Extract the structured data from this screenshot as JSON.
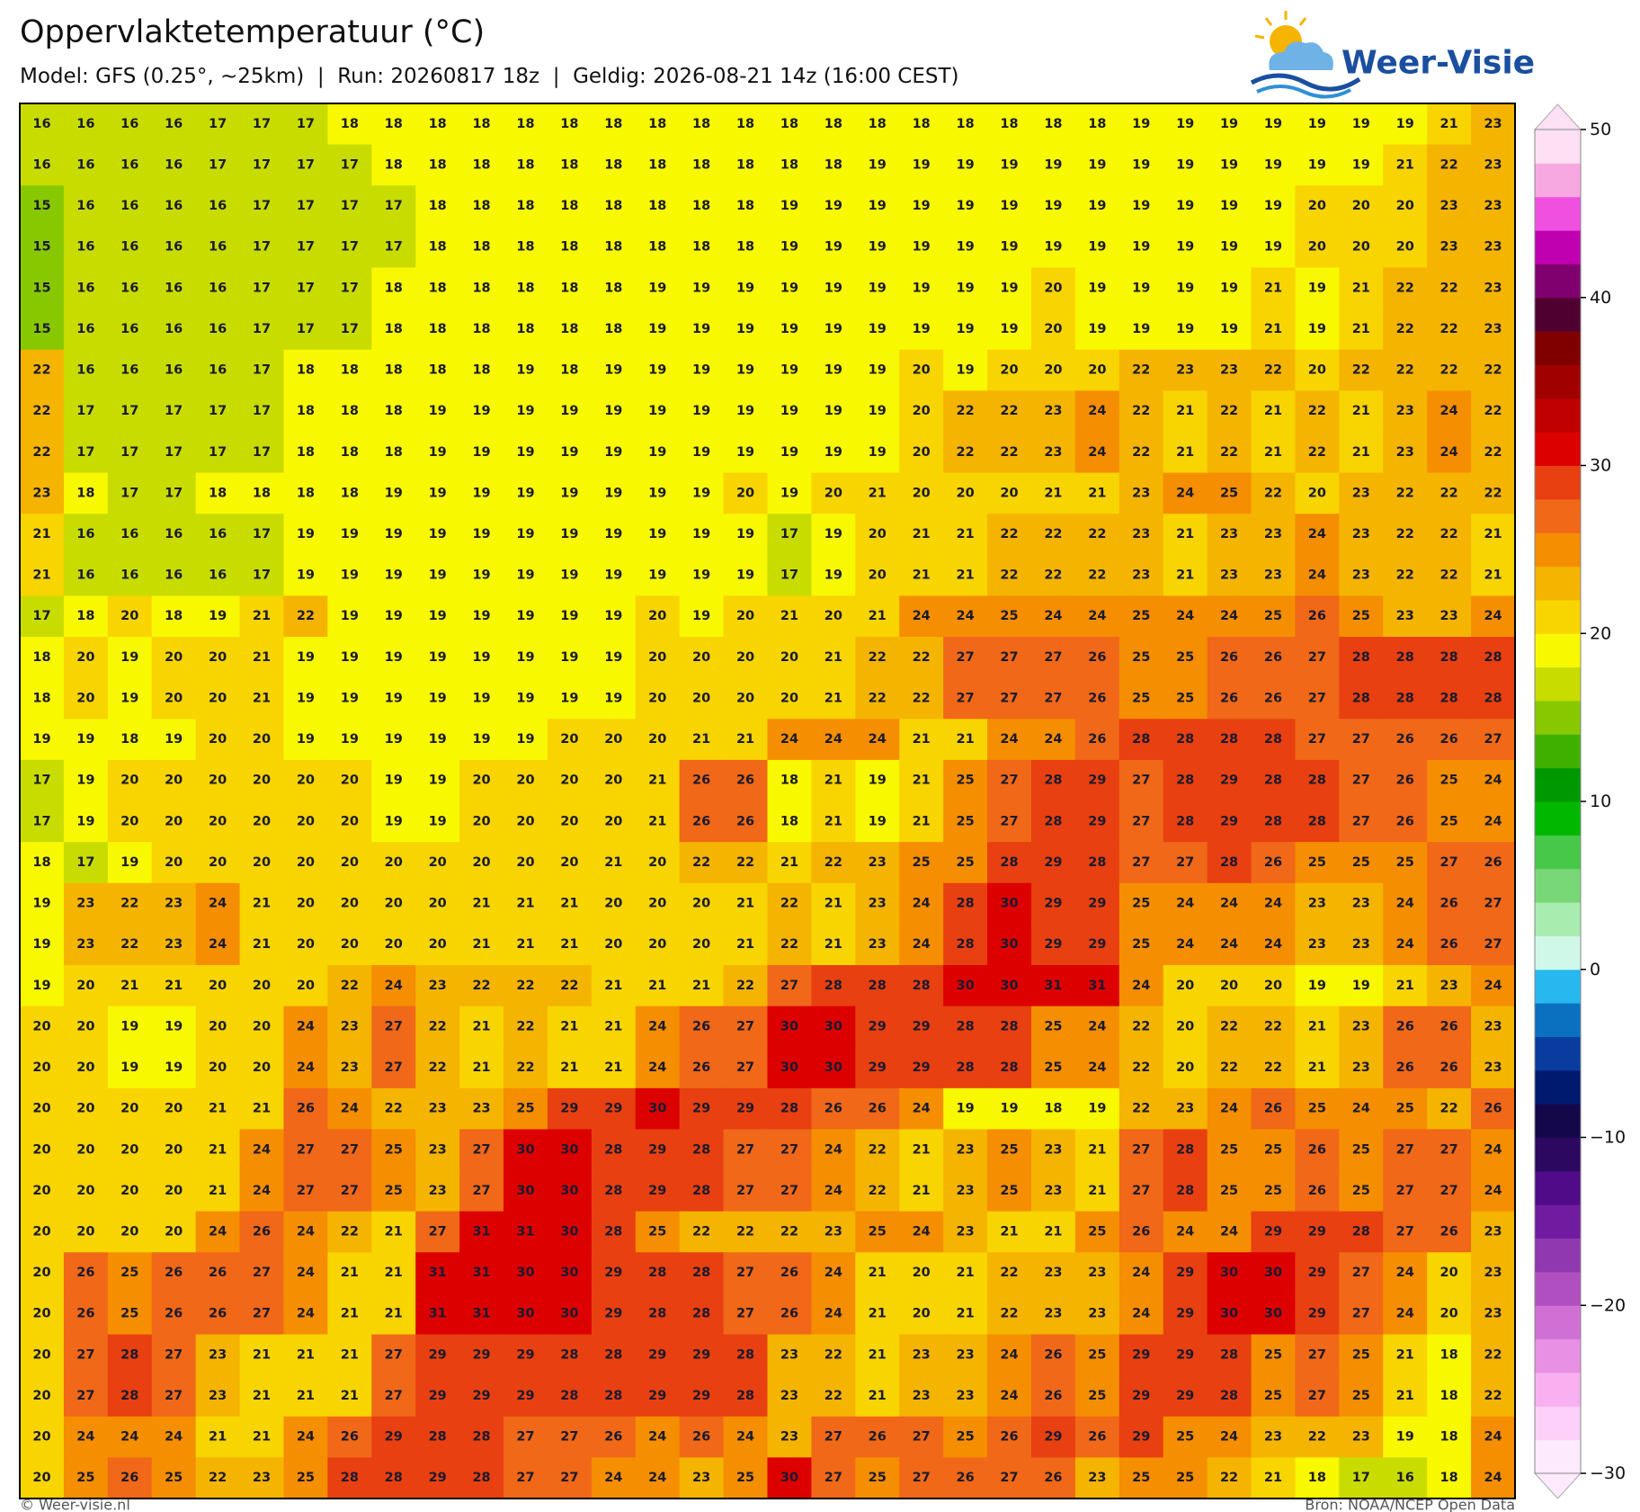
{
  "header": {
    "logo": "Weer-Visie"
  },
  "footer": {
    "left": "© Weer-visie.nl",
    "right": "Bron: NOAA/NCEP Open Data"
  },
  "chart_data": {
    "type": "heatmap",
    "title": "Oppervlaktetemperatuur (°C)",
    "subtitle": "Model: GFS (0.25°, ~25km)  |  Run: 20260817 18z  |  Geldig: 2026-08-21 14z (16:00 CEST)",
    "grid": [
      [
        16,
        16,
        16,
        16,
        17,
        17,
        17,
        18,
        18,
        18,
        18,
        18,
        18,
        18,
        18,
        18,
        18,
        18,
        18,
        18,
        18,
        18,
        18,
        18,
        18,
        19,
        19,
        19,
        19,
        19,
        19,
        19,
        21,
        23
      ],
      [
        16,
        16,
        16,
        16,
        17,
        17,
        17,
        17,
        18,
        18,
        18,
        18,
        18,
        18,
        18,
        18,
        18,
        18,
        18,
        19,
        19,
        19,
        19,
        19,
        19,
        19,
        19,
        19,
        19,
        19,
        19,
        21,
        22,
        23
      ],
      [
        15,
        16,
        16,
        16,
        16,
        17,
        17,
        17,
        17,
        18,
        18,
        18,
        18,
        18,
        18,
        18,
        18,
        19,
        19,
        19,
        19,
        19,
        19,
        19,
        19,
        19,
        19,
        19,
        19,
        20,
        20,
        20,
        23,
        23
      ],
      [
        15,
        16,
        16,
        16,
        16,
        17,
        17,
        17,
        17,
        18,
        18,
        18,
        18,
        18,
        18,
        18,
        18,
        19,
        19,
        19,
        19,
        19,
        19,
        19,
        19,
        19,
        19,
        19,
        19,
        20,
        20,
        20,
        23,
        23
      ],
      [
        15,
        16,
        16,
        16,
        16,
        17,
        17,
        17,
        18,
        18,
        18,
        18,
        18,
        18,
        19,
        19,
        19,
        19,
        19,
        19,
        19,
        19,
        19,
        20,
        19,
        19,
        19,
        19,
        21,
        19,
        21,
        22,
        22,
        23
      ],
      [
        15,
        16,
        16,
        16,
        16,
        17,
        17,
        17,
        18,
        18,
        18,
        18,
        18,
        18,
        19,
        19,
        19,
        19,
        19,
        19,
        19,
        19,
        19,
        20,
        19,
        19,
        19,
        19,
        21,
        19,
        21,
        22,
        22,
        23
      ],
      [
        22,
        16,
        16,
        16,
        16,
        17,
        18,
        18,
        18,
        18,
        18,
        19,
        18,
        19,
        19,
        19,
        19,
        19,
        19,
        19,
        20,
        19,
        20,
        20,
        20,
        22,
        23,
        23,
        22,
        20,
        22,
        22,
        22,
        22
      ],
      [
        22,
        17,
        17,
        17,
        17,
        17,
        18,
        18,
        18,
        19,
        19,
        19,
        19,
        19,
        19,
        19,
        19,
        19,
        19,
        19,
        20,
        22,
        22,
        23,
        24,
        22,
        21,
        22,
        21,
        22,
        21,
        23,
        24,
        22
      ],
      [
        22,
        17,
        17,
        17,
        17,
        17,
        18,
        18,
        18,
        19,
        19,
        19,
        19,
        19,
        19,
        19,
        19,
        19,
        19,
        19,
        20,
        22,
        22,
        23,
        24,
        22,
        21,
        22,
        21,
        22,
        21,
        23,
        24,
        22
      ],
      [
        23,
        18,
        17,
        17,
        18,
        18,
        18,
        18,
        19,
        19,
        19,
        19,
        19,
        19,
        19,
        19,
        20,
        19,
        20,
        21,
        20,
        20,
        20,
        21,
        21,
        23,
        24,
        25,
        22,
        20,
        23,
        22,
        22,
        22
      ],
      [
        21,
        16,
        16,
        16,
        16,
        17,
        19,
        19,
        19,
        19,
        19,
        19,
        19,
        19,
        19,
        19,
        19,
        17,
        19,
        20,
        21,
        21,
        22,
        22,
        22,
        23,
        21,
        23,
        23,
        24,
        23,
        22,
        22,
        21
      ],
      [
        21,
        16,
        16,
        16,
        16,
        17,
        19,
        19,
        19,
        19,
        19,
        19,
        19,
        19,
        19,
        19,
        19,
        17,
        19,
        20,
        21,
        21,
        22,
        22,
        22,
        23,
        21,
        23,
        23,
        24,
        23,
        22,
        22,
        21
      ],
      [
        17,
        18,
        20,
        18,
        19,
        21,
        22,
        19,
        19,
        19,
        19,
        19,
        19,
        19,
        20,
        19,
        20,
        21,
        20,
        21,
        24,
        24,
        25,
        24,
        24,
        25,
        24,
        24,
        25,
        26,
        25,
        23,
        23,
        24
      ],
      [
        18,
        20,
        19,
        20,
        20,
        21,
        19,
        19,
        19,
        19,
        19,
        19,
        19,
        19,
        20,
        20,
        20,
        20,
        21,
        22,
        22,
        27,
        27,
        27,
        26,
        25,
        25,
        26,
        26,
        27,
        28,
        28,
        28,
        28
      ],
      [
        18,
        20,
        19,
        20,
        20,
        21,
        19,
        19,
        19,
        19,
        19,
        19,
        19,
        19,
        20,
        20,
        20,
        20,
        21,
        22,
        22,
        27,
        27,
        27,
        26,
        25,
        25,
        26,
        26,
        27,
        28,
        28,
        28,
        28
      ],
      [
        19,
        19,
        18,
        19,
        20,
        20,
        19,
        19,
        19,
        19,
        19,
        19,
        20,
        20,
        20,
        21,
        21,
        24,
        24,
        24,
        21,
        21,
        24,
        24,
        26,
        28,
        28,
        28,
        28,
        27,
        27,
        26,
        26,
        27
      ],
      [
        17,
        19,
        20,
        20,
        20,
        20,
        20,
        20,
        19,
        19,
        20,
        20,
        20,
        20,
        21,
        26,
        26,
        18,
        21,
        19,
        21,
        25,
        27,
        28,
        29,
        27,
        28,
        29,
        28,
        28,
        27,
        26,
        25,
        24
      ],
      [
        17,
        19,
        20,
        20,
        20,
        20,
        20,
        20,
        19,
        19,
        20,
        20,
        20,
        20,
        21,
        26,
        26,
        18,
        21,
        19,
        21,
        25,
        27,
        28,
        29,
        27,
        28,
        29,
        28,
        28,
        27,
        26,
        25,
        24
      ],
      [
        18,
        17,
        19,
        20,
        20,
        20,
        20,
        20,
        20,
        20,
        20,
        20,
        20,
        21,
        20,
        22,
        22,
        21,
        22,
        23,
        25,
        25,
        28,
        29,
        28,
        27,
        27,
        28,
        26,
        25,
        25,
        25,
        27,
        26
      ],
      [
        19,
        23,
        22,
        23,
        24,
        21,
        20,
        20,
        20,
        20,
        21,
        21,
        21,
        20,
        20,
        20,
        21,
        22,
        21,
        23,
        24,
        28,
        30,
        29,
        29,
        25,
        24,
        24,
        24,
        23,
        23,
        24,
        26,
        27
      ],
      [
        19,
        23,
        22,
        23,
        24,
        21,
        20,
        20,
        20,
        20,
        21,
        21,
        21,
        20,
        20,
        20,
        21,
        22,
        21,
        23,
        24,
        28,
        30,
        29,
        29,
        25,
        24,
        24,
        24,
        23,
        23,
        24,
        26,
        27
      ],
      [
        19,
        20,
        21,
        21,
        20,
        20,
        20,
        22,
        24,
        23,
        22,
        22,
        22,
        21,
        21,
        21,
        22,
        27,
        28,
        28,
        28,
        30,
        30,
        31,
        31,
        24,
        20,
        20,
        20,
        19,
        19,
        21,
        23,
        24
      ],
      [
        20,
        20,
        19,
        19,
        20,
        20,
        24,
        23,
        27,
        22,
        21,
        22,
        21,
        21,
        24,
        26,
        27,
        30,
        30,
        29,
        29,
        28,
        28,
        25,
        24,
        22,
        20,
        22,
        22,
        21,
        23,
        26,
        26,
        23
      ],
      [
        20,
        20,
        19,
        19,
        20,
        20,
        24,
        23,
        27,
        22,
        21,
        22,
        21,
        21,
        24,
        26,
        27,
        30,
        30,
        29,
        29,
        28,
        28,
        25,
        24,
        22,
        20,
        22,
        22,
        21,
        23,
        26,
        26,
        23
      ],
      [
        20,
        20,
        20,
        20,
        21,
        21,
        26,
        24,
        22,
        23,
        23,
        25,
        29,
        29,
        30,
        29,
        29,
        28,
        26,
        26,
        24,
        19,
        19,
        18,
        19,
        22,
        23,
        24,
        26,
        25,
        24,
        25,
        22,
        26
      ],
      [
        20,
        20,
        20,
        20,
        21,
        24,
        27,
        27,
        25,
        23,
        27,
        30,
        30,
        28,
        29,
        28,
        27,
        27,
        24,
        22,
        21,
        23,
        25,
        23,
        21,
        27,
        28,
        25,
        25,
        26,
        25,
        27,
        27,
        24
      ],
      [
        20,
        20,
        20,
        20,
        21,
        24,
        27,
        27,
        25,
        23,
        27,
        30,
        30,
        28,
        29,
        28,
        27,
        27,
        24,
        22,
        21,
        23,
        25,
        23,
        21,
        27,
        28,
        25,
        25,
        26,
        25,
        27,
        27,
        24
      ],
      [
        20,
        20,
        20,
        20,
        24,
        26,
        24,
        22,
        21,
        27,
        31,
        31,
        30,
        28,
        25,
        22,
        22,
        22,
        23,
        25,
        24,
        23,
        21,
        21,
        25,
        26,
        24,
        24,
        29,
        29,
        28,
        27,
        26,
        23
      ],
      [
        20,
        26,
        25,
        26,
        26,
        27,
        24,
        21,
        21,
        31,
        31,
        30,
        30,
        29,
        28,
        28,
        27,
        26,
        24,
        21,
        20,
        21,
        22,
        23,
        23,
        24,
        29,
        30,
        30,
        29,
        27,
        24,
        20,
        23
      ],
      [
        20,
        26,
        25,
        26,
        26,
        27,
        24,
        21,
        21,
        31,
        31,
        30,
        30,
        29,
        28,
        28,
        27,
        26,
        24,
        21,
        20,
        21,
        22,
        23,
        23,
        24,
        29,
        30,
        30,
        29,
        27,
        24,
        20,
        23
      ],
      [
        20,
        27,
        28,
        27,
        23,
        21,
        21,
        21,
        27,
        29,
        29,
        29,
        28,
        28,
        29,
        29,
        28,
        23,
        22,
        21,
        23,
        23,
        24,
        26,
        25,
        29,
        29,
        28,
        25,
        27,
        25,
        21,
        18,
        22
      ],
      [
        20,
        27,
        28,
        27,
        23,
        21,
        21,
        21,
        27,
        29,
        29,
        29,
        28,
        28,
        29,
        29,
        28,
        23,
        22,
        21,
        23,
        23,
        24,
        26,
        25,
        29,
        29,
        28,
        25,
        27,
        25,
        21,
        18,
        22
      ],
      [
        20,
        24,
        24,
        24,
        21,
        21,
        24,
        26,
        29,
        28,
        28,
        27,
        27,
        26,
        24,
        26,
        24,
        23,
        27,
        26,
        27,
        25,
        26,
        29,
        26,
        29,
        25,
        24,
        23,
        22,
        23,
        19,
        18,
        24
      ],
      [
        20,
        25,
        26,
        25,
        22,
        23,
        25,
        28,
        28,
        29,
        28,
        27,
        27,
        24,
        24,
        23,
        25,
        30,
        27,
        25,
        27,
        26,
        27,
        26,
        23,
        25,
        25,
        22,
        21,
        18,
        17,
        16,
        18,
        24
      ]
    ],
    "colorbar": {
      "lim": [
        -30,
        50
      ],
      "ticks": [
        {
          "value": -30,
          "label": "−30"
        },
        {
          "value": -20,
          "label": "−20"
        },
        {
          "value": -10,
          "label": "−10"
        },
        0,
        10,
        20,
        30,
        40,
        50
      ],
      "colors": [
        "#fdeafd",
        "#fcd0f8",
        "#f8b0f0",
        "#e890e4",
        "#d070d4",
        "#b050c0",
        "#9038b0",
        "#701ca0",
        "#500c88",
        "#2c0860",
        "#14084a",
        "#001a70",
        "#0a3ca0",
        "#0a70c0",
        "#28b8f0",
        "#d0f8e8",
        "#a8ecb0",
        "#78d878",
        "#48c848",
        "#00b800",
        "#009800",
        "#40b000",
        "#88c800",
        "#c8dc00",
        "#f8f800",
        "#f8d400",
        "#f5b400",
        "#f58e00",
        "#f06818",
        "#e84010",
        "#dc0000",
        "#c00000",
        "#a00000",
        "#800000",
        "#500030",
        "#800070",
        "#c000b0",
        "#f050e0",
        "#f8a8e0",
        "#fde0f4"
      ]
    }
  }
}
